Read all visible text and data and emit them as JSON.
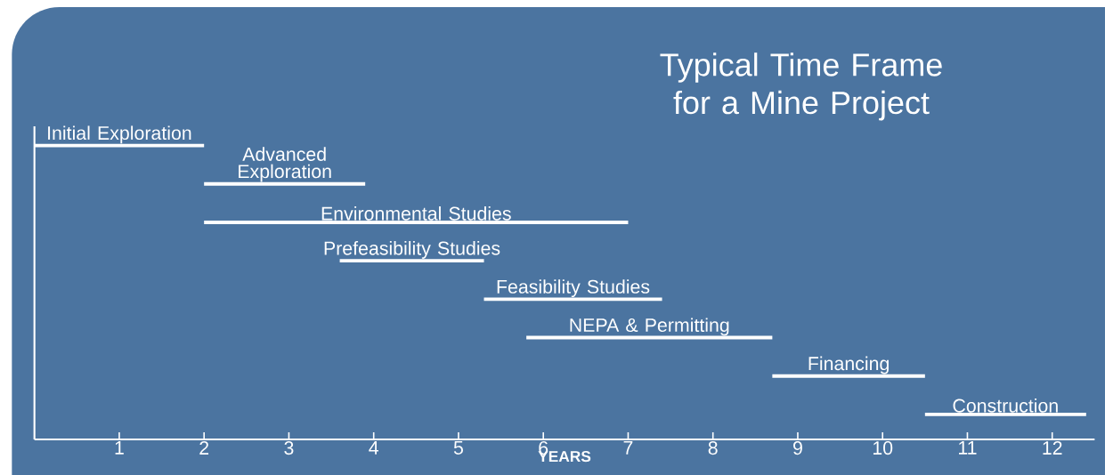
{
  "chart_data": {
    "type": "bar",
    "orientation": "horizontal",
    "title": "Typical Time Frame for a Mine Project",
    "xlabel": "YEARS",
    "categories": [
      "Initial Exploration",
      "Advanced Exploration",
      "Environmental Studies",
      "Prefeasibility Studies",
      "Feasibility Studies",
      "NEPA & Permitting",
      "Financing",
      "Construction"
    ],
    "base": [
      0,
      2,
      2,
      3.6,
      5.3,
      5.8,
      8.7,
      10.5
    ],
    "values": [
      2,
      1.9,
      5,
      1.7,
      2.1,
      2.9,
      1.8,
      1.9
    ],
    "color": "#ffffff",
    "xlim": [
      0,
      12.5
    ],
    "xticks": [
      1,
      2,
      3,
      4,
      5,
      6,
      7,
      8,
      9,
      10,
      11,
      12
    ]
  }
}
